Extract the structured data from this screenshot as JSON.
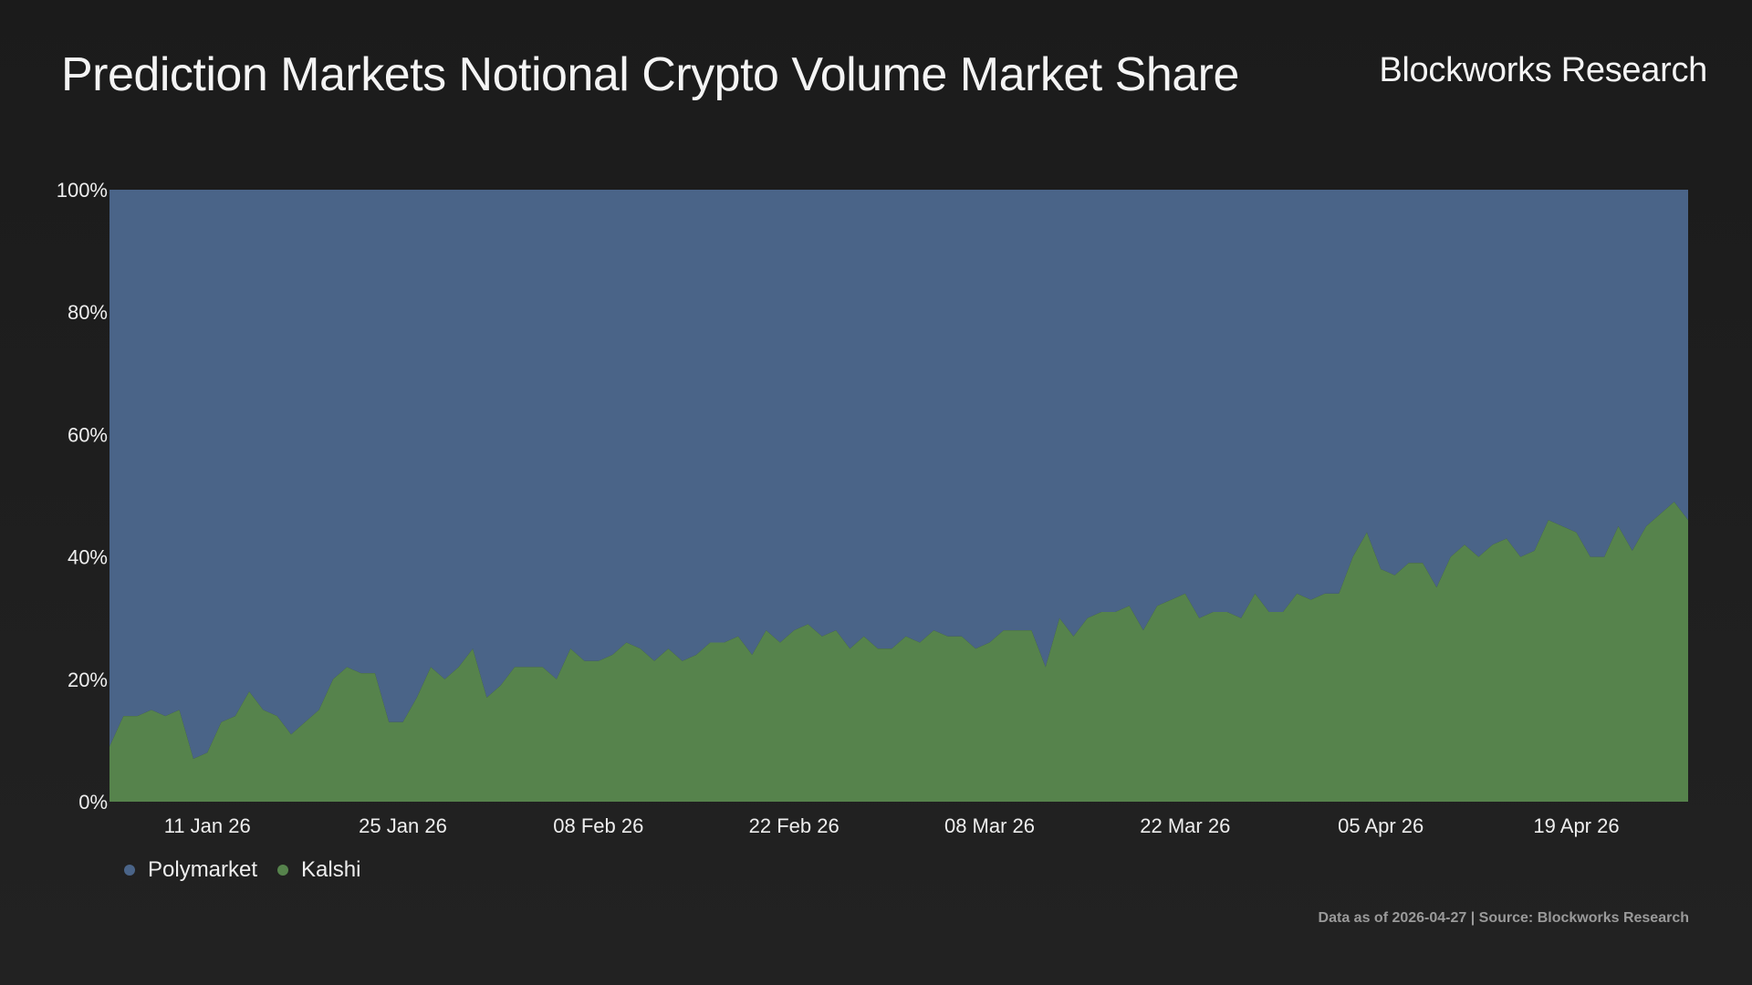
{
  "header": {
    "title": "Prediction Markets Notional Crypto Volume Market Share",
    "brand": "Blockworks Research"
  },
  "footer": {
    "note": "Data as of 2026-04-27 | Source: Blockworks Research"
  },
  "colors": {
    "polymarket": "#4a6488",
    "kalshi": "#56834c",
    "background": "#1d1d1d"
  },
  "chart_data": {
    "type": "area",
    "stacked": true,
    "normalized_percent": true,
    "title": "Prediction Markets Notional Crypto Volume Market Share",
    "xlabel": "",
    "ylabel": "",
    "ylim": [
      0,
      100
    ],
    "yticks": [
      "0%",
      "20%",
      "40%",
      "60%",
      "80%",
      "100%"
    ],
    "xticks": [
      "11 Jan 26",
      "25 Jan 26",
      "08 Feb 26",
      "22 Feb 26",
      "08 Mar 26",
      "22 Mar 26",
      "05 Apr 26",
      "19 Apr 26"
    ],
    "x_start": "2026-01-04",
    "x_end": "2026-04-27",
    "legend": {
      "placement": "bottom-left"
    },
    "grid": false,
    "series": [
      {
        "name": "Kalshi",
        "color": "#56834c",
        "values": [
          9,
          14,
          14,
          15,
          14,
          15,
          7,
          8,
          13,
          14,
          18,
          15,
          14,
          11,
          13,
          15,
          20,
          22,
          21,
          21,
          13,
          13,
          17,
          22,
          20,
          22,
          25,
          17,
          19,
          22,
          22,
          22,
          20,
          25,
          23,
          23,
          24,
          26,
          25,
          23,
          25,
          23,
          24,
          26,
          26,
          27,
          24,
          28,
          26,
          28,
          29,
          27,
          28,
          25,
          27,
          25,
          25,
          27,
          26,
          28,
          27,
          27,
          25,
          26,
          28,
          28,
          28,
          22,
          30,
          27,
          30,
          31,
          31,
          32,
          28,
          32,
          33,
          34,
          30,
          31,
          31,
          30,
          34,
          31,
          31,
          34,
          33,
          34,
          34,
          40,
          44,
          38,
          37,
          39,
          39,
          35,
          40,
          42,
          40,
          42,
          43,
          40,
          41,
          46,
          45,
          44,
          40,
          40,
          45,
          41,
          45,
          47,
          49,
          46
        ]
      },
      {
        "name": "Polymarket",
        "color": "#4a6488",
        "values": [
          91,
          86,
          86,
          85,
          86,
          85,
          93,
          92,
          87,
          86,
          82,
          85,
          86,
          89,
          87,
          85,
          80,
          78,
          79,
          79,
          87,
          87,
          83,
          78,
          80,
          78,
          75,
          83,
          81,
          78,
          78,
          78,
          80,
          75,
          77,
          77,
          76,
          74,
          75,
          77,
          75,
          77,
          76,
          74,
          74,
          73,
          76,
          72,
          74,
          72,
          71,
          73,
          72,
          75,
          73,
          75,
          75,
          73,
          74,
          72,
          73,
          73,
          75,
          74,
          72,
          72,
          72,
          78,
          70,
          73,
          70,
          69,
          69,
          68,
          72,
          68,
          67,
          66,
          70,
          69,
          69,
          70,
          66,
          69,
          69,
          66,
          67,
          66,
          66,
          60,
          56,
          62,
          63,
          61,
          61,
          65,
          60,
          58,
          60,
          58,
          57,
          60,
          59,
          54,
          55,
          56,
          60,
          60,
          55,
          59,
          55,
          53,
          51,
          54
        ]
      }
    ]
  }
}
